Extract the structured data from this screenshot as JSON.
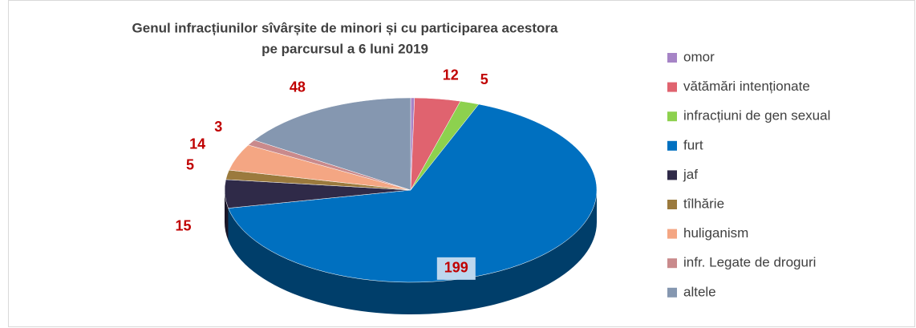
{
  "chart_data": {
    "type": "pie3d",
    "title": [
      "Genul infracțiunilor sîvârșite de minori și cu participarea acestora",
      "pe parcursul a 6 luni 2019"
    ],
    "categories": [
      "omor",
      "vătămări intenționate",
      "infracțiuni de gen sexual",
      "furt",
      "jaf",
      "tîlhărie",
      "huliganism",
      "infr. Legate de droguri",
      "altele"
    ],
    "values": [
      1,
      12,
      5,
      199,
      15,
      5,
      14,
      3,
      48
    ],
    "colors": [
      "#a684c6",
      "#e0636f",
      "#8dd14e",
      "#0070c0",
      "#2f2a48",
      "#9b7a3d",
      "#f4a683",
      "#c98a8c",
      "#8597b0"
    ],
    "legend": "right"
  }
}
